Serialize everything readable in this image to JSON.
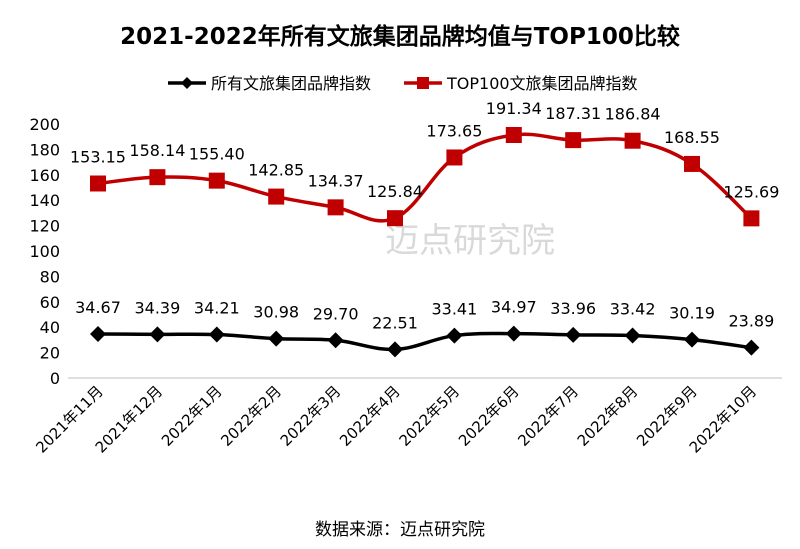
{
  "chart_data": {
    "type": "line",
    "title": "2021-2022年所有文旅集团品牌均值与TOP100比较",
    "categories": [
      "2021年11月",
      "2021年12月",
      "2022年1月",
      "2022年2月",
      "2022年3月",
      "2022年4月",
      "2022年5月",
      "2022年6月",
      "2022年7月",
      "2022年8月",
      "2022年9月",
      "2022年10月"
    ],
    "series": [
      {
        "name": "所有文旅集团品牌指数",
        "color": "#000000",
        "marker": "diamond",
        "values": [
          34.67,
          34.39,
          34.21,
          30.98,
          29.7,
          22.51,
          33.41,
          34.97,
          33.96,
          33.42,
          30.19,
          23.89
        ]
      },
      {
        "name": "TOP100文旅集团品牌指数",
        "color": "#c00000",
        "marker": "square",
        "values": [
          153.15,
          158.14,
          155.4,
          142.85,
          134.37,
          125.84,
          173.65,
          191.34,
          187.31,
          186.84,
          168.55,
          125.69
        ]
      }
    ],
    "ylim": [
      0,
      200
    ],
    "yticks": [
      0,
      20,
      40,
      60,
      80,
      100,
      120,
      140,
      160,
      180,
      200
    ],
    "grid": false,
    "legend": "top",
    "smooth": true
  },
  "watermark": "迈点研究院",
  "source": "数据来源：迈点研究院"
}
